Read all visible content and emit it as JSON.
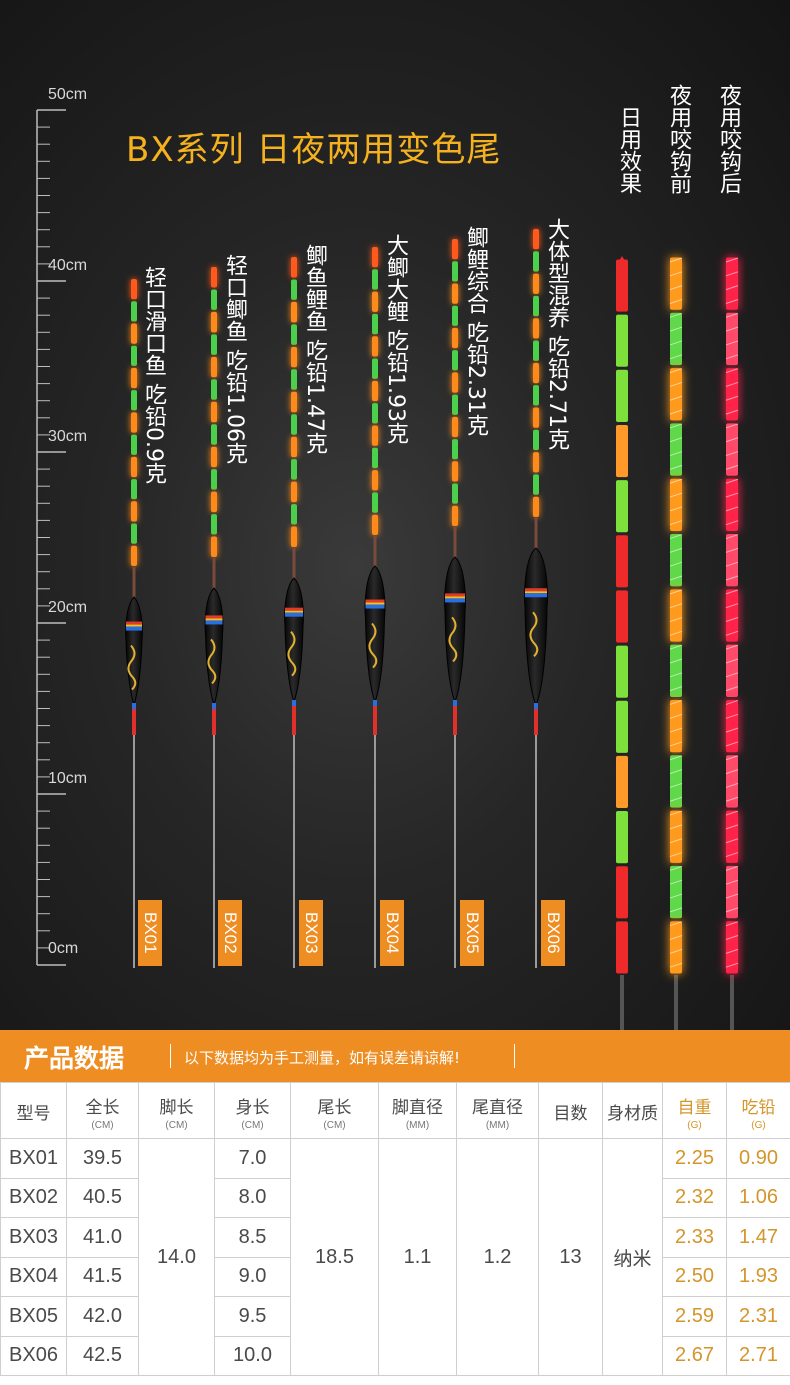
{
  "title": "BX系列 日夜两用变色尾",
  "ruler": {
    "labels": [
      "50cm",
      "40cm",
      "30cm",
      "20cm",
      "10cm",
      "0cm"
    ]
  },
  "floats": [
    {
      "model": "BX01",
      "desc": "轻口滑口鱼  吃铅0.9克"
    },
    {
      "model": "BX02",
      "desc": "轻口鲫鱼  吃铅1.06克"
    },
    {
      "model": "BX03",
      "desc": "鲫鱼鲤鱼  吃铅1.47克"
    },
    {
      "model": "BX04",
      "desc": "大鲫大鲤  吃铅1.93克"
    },
    {
      "model": "BX05",
      "desc": "鲫鲤综合  吃铅2.31克"
    },
    {
      "model": "BX06",
      "desc": "大体型混养  吃铅2.71克"
    }
  ],
  "tails": [
    {
      "label": "日用效果"
    },
    {
      "label": "夜用咬钩前"
    },
    {
      "label": "夜用咬钩后"
    }
  ],
  "colors": {
    "accent": "#ee8d22",
    "title": "#f5b21e",
    "highlight_text": "#d4952a"
  },
  "banner": {
    "title": "产品数据",
    "note": "以下数据均为手工测量，如有误差请谅解!"
  },
  "table": {
    "headers": [
      {
        "label": "型号",
        "unit": ""
      },
      {
        "label": "全长",
        "unit": "(CM)"
      },
      {
        "label": "脚长",
        "unit": "(CM)"
      },
      {
        "label": "身长",
        "unit": "(CM)"
      },
      {
        "label": "尾长",
        "unit": "(CM)"
      },
      {
        "label": "脚直径",
        "unit": "(MM)"
      },
      {
        "label": "尾直径",
        "unit": "(MM)"
      },
      {
        "label": "目数",
        "unit": ""
      },
      {
        "label": "身材质",
        "unit": ""
      },
      {
        "label": "自重",
        "unit": "(G)"
      },
      {
        "label": "吃铅",
        "unit": "(G)"
      }
    ],
    "shared": {
      "foot_length": "14.0",
      "tail_length": "18.5",
      "foot_diameter": "1.1",
      "tail_diameter": "1.2",
      "marks": "13",
      "material": "纳米"
    },
    "rows": [
      {
        "model": "BX01",
        "total": "39.5",
        "body": "7.0",
        "weight": "2.25",
        "lead": "0.90"
      },
      {
        "model": "BX02",
        "total": "40.5",
        "body": "8.0",
        "weight": "2.32",
        "lead": "1.06"
      },
      {
        "model": "BX03",
        "total": "41.0",
        "body": "8.5",
        "weight": "2.33",
        "lead": "1.47"
      },
      {
        "model": "BX04",
        "total": "41.5",
        "body": "9.0",
        "weight": "2.50",
        "lead": "1.93"
      },
      {
        "model": "BX05",
        "total": "42.0",
        "body": "9.5",
        "weight": "2.59",
        "lead": "2.31"
      },
      {
        "model": "BX06",
        "total": "42.5",
        "body": "10.0",
        "weight": "2.67",
        "lead": "2.71"
      }
    ]
  }
}
